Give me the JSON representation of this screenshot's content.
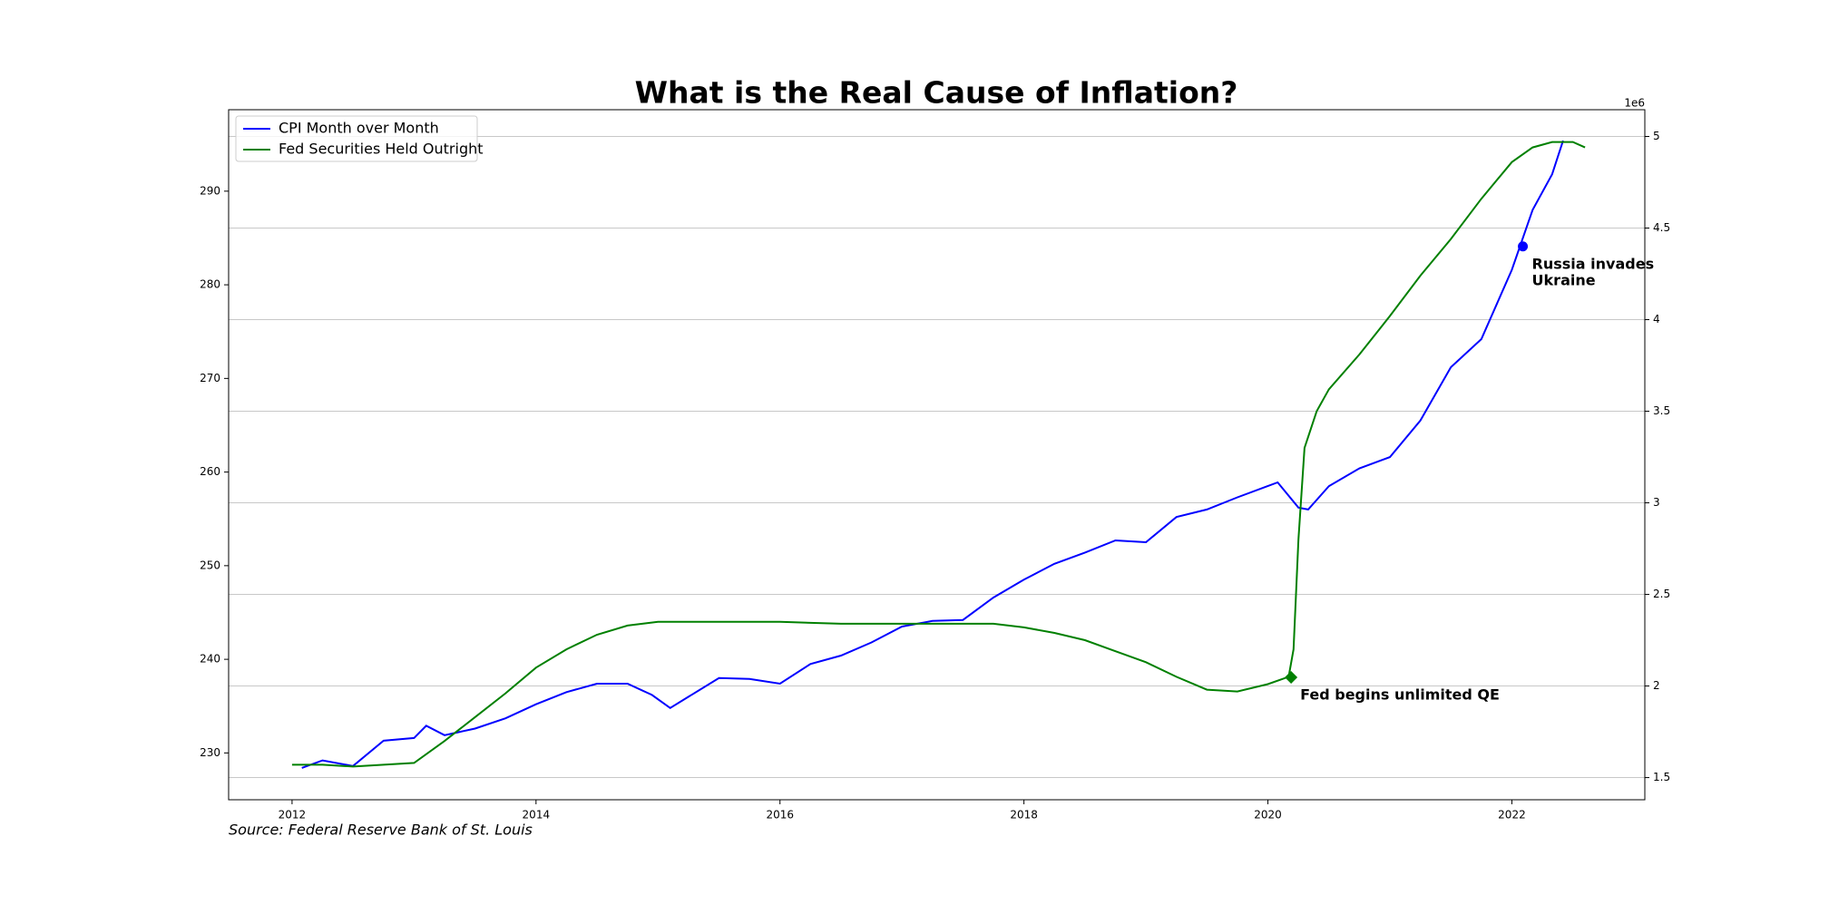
{
  "chart_data": {
    "type": "line",
    "title": "What is the Real Cause of Inflation?",
    "source": "Source: Federal Reserve Bank of St. Louis",
    "legend": "upper left",
    "grid": "y2",
    "xlim": [
      2011.48,
      2023.09
    ],
    "xticks": [
      2012,
      2014,
      2016,
      2018,
      2020,
      2022
    ],
    "ylim": [
      225.0,
      298.7
    ],
    "yticks": [
      230,
      240,
      250,
      260,
      270,
      280,
      290
    ],
    "y2lim": [
      1.379,
      5.146
    ],
    "y2ticks": [
      1.5,
      2.0,
      2.5,
      3.0,
      3.5,
      4.0,
      4.5,
      5.0
    ],
    "y2_offset_label": "1e6",
    "series": [
      {
        "name": "CPI Month over Month",
        "color": "#0000ff",
        "axis": "y",
        "x": [
          2012.08,
          2012.25,
          2012.5,
          2012.75,
          2013.0,
          2013.1,
          2013.25,
          2013.5,
          2013.75,
          2014.0,
          2014.25,
          2014.5,
          2014.75,
          2014.95,
          2015.1,
          2015.25,
          2015.5,
          2015.75,
          2016.0,
          2016.25,
          2016.5,
          2016.75,
          2017.0,
          2017.25,
          2017.5,
          2017.75,
          2018.0,
          2018.25,
          2018.5,
          2018.75,
          2019.0,
          2019.25,
          2019.5,
          2019.75,
          2020.08,
          2020.25,
          2020.33,
          2020.5,
          2020.75,
          2021.0,
          2021.25,
          2021.5,
          2021.75,
          2022.0,
          2022.17,
          2022.33,
          2022.42
        ],
        "values": [
          228.4,
          229.2,
          228.6,
          231.3,
          231.6,
          232.9,
          231.9,
          232.6,
          233.7,
          235.2,
          236.5,
          237.4,
          237.4,
          236.2,
          234.8,
          236.0,
          238.0,
          237.9,
          237.4,
          239.5,
          240.4,
          241.8,
          243.5,
          244.1,
          244.2,
          246.6,
          248.5,
          250.2,
          251.4,
          252.7,
          252.5,
          255.2,
          256.0,
          257.3,
          258.9,
          256.2,
          256.0,
          258.5,
          260.4,
          261.6,
          265.5,
          271.2,
          274.2,
          281.6,
          288.0,
          291.8,
          295.4
        ]
      },
      {
        "name": "Fed Securities Held Outright",
        "color": "#008000",
        "axis": "y2",
        "x": [
          2012.0,
          2012.25,
          2012.5,
          2012.75,
          2013.0,
          2013.25,
          2013.5,
          2013.75,
          2014.0,
          2014.25,
          2014.5,
          2014.75,
          2015.0,
          2015.5,
          2016.0,
          2016.5,
          2017.0,
          2017.5,
          2017.75,
          2018.0,
          2018.25,
          2018.5,
          2018.75,
          2019.0,
          2019.25,
          2019.5,
          2019.75,
          2020.0,
          2020.17,
          2020.21,
          2020.25,
          2020.3,
          2020.4,
          2020.5,
          2020.75,
          2021.0,
          2021.25,
          2021.5,
          2021.75,
          2022.0,
          2022.17,
          2022.33,
          2022.5,
          2022.6
        ],
        "values": [
          1.57,
          1.57,
          1.56,
          1.57,
          1.58,
          1.7,
          1.83,
          1.96,
          2.1,
          2.2,
          2.28,
          2.33,
          2.35,
          2.35,
          2.35,
          2.34,
          2.34,
          2.34,
          2.34,
          2.32,
          2.29,
          2.25,
          2.19,
          2.13,
          2.05,
          1.98,
          1.97,
          2.01,
          2.05,
          2.2,
          2.8,
          3.3,
          3.5,
          3.62,
          3.81,
          4.02,
          4.24,
          4.44,
          4.66,
          4.86,
          4.94,
          4.97,
          4.97,
          4.94
        ]
      }
    ],
    "annotations": [
      {
        "text": [
          "Russia invades",
          "Ukraine"
        ],
        "x": 2022.09,
        "y": 284.1,
        "axis": "y",
        "color": "#0000ff",
        "marker": "circle"
      },
      {
        "text": [
          "Fed begins unlimited QE"
        ],
        "x": 2020.19,
        "y": 2.047,
        "axis": "y2",
        "color": "#008000",
        "marker": "diamond"
      }
    ]
  }
}
